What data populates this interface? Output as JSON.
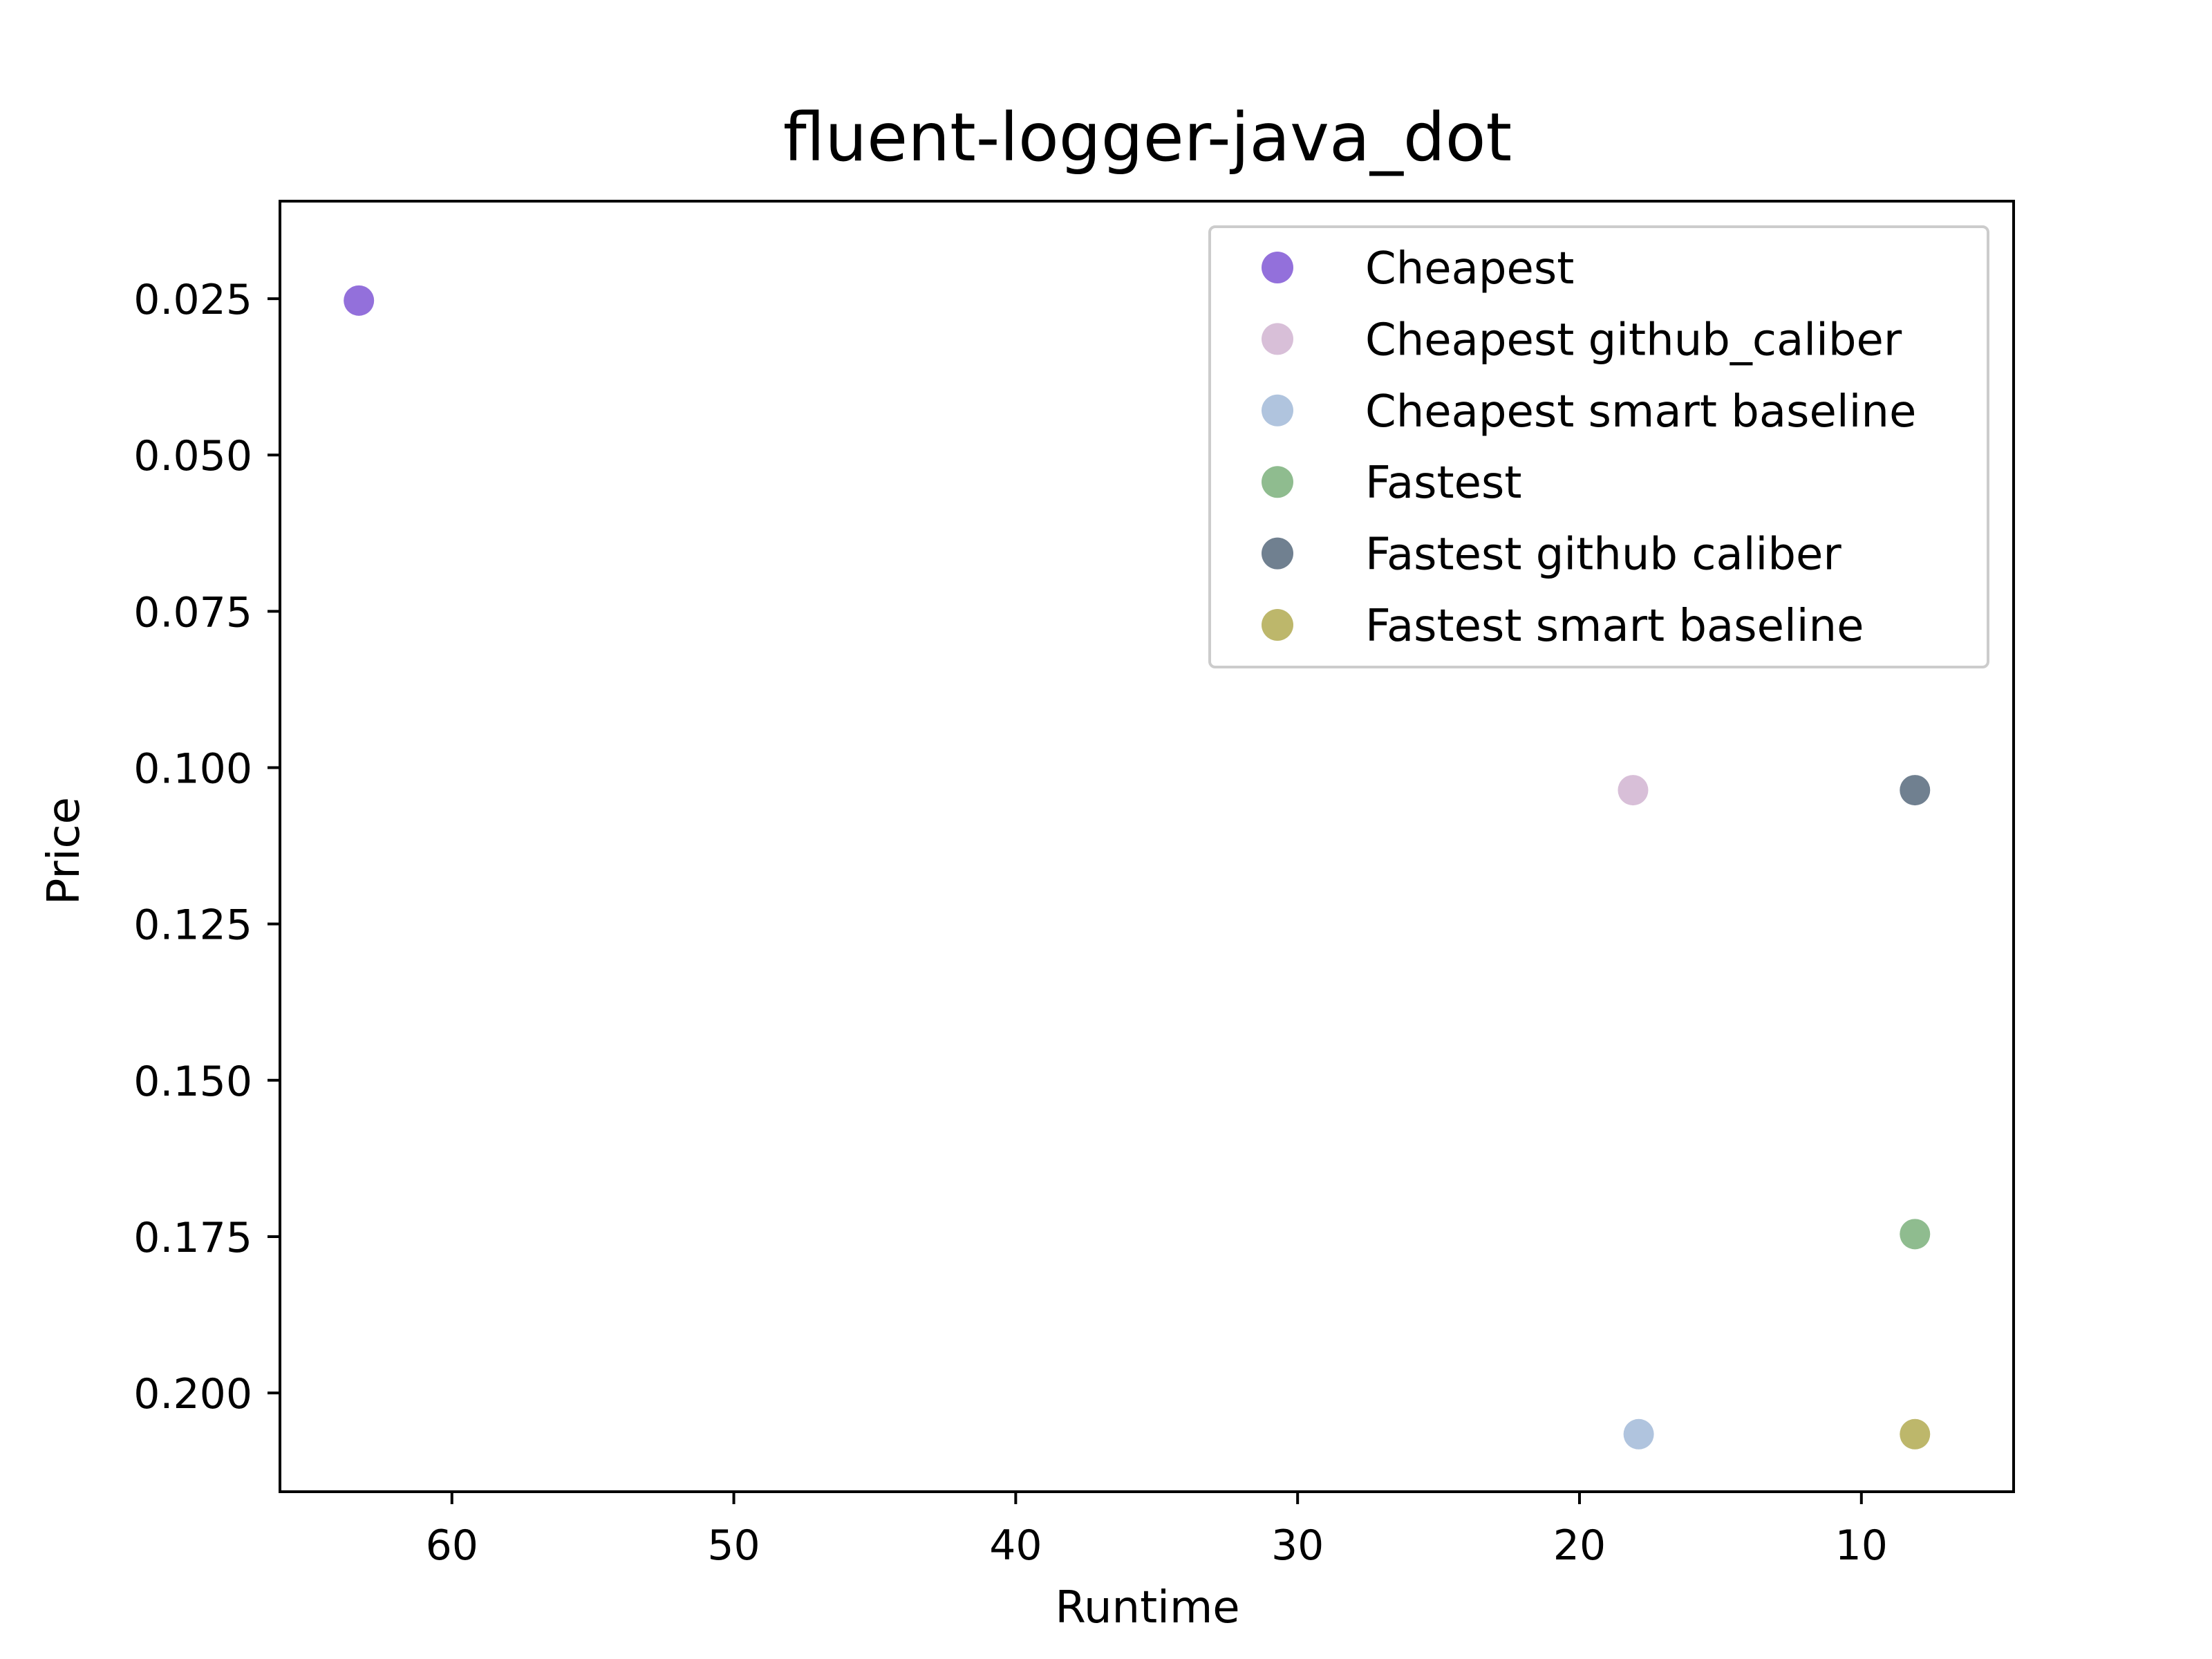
{
  "chart_data": {
    "type": "scatter",
    "title": "fluent-logger-java_dot",
    "xlabel": "Runtime",
    "ylabel": "Price",
    "x_inverted": true,
    "y_inverted": true,
    "xlim": [
      66.1,
      4.6
    ],
    "ylim": [
      0.0094,
      0.2158
    ],
    "xticks": [
      60,
      50,
      40,
      30,
      20,
      10
    ],
    "xtick_labels": [
      "60",
      "50",
      "40",
      "30",
      "20",
      "10"
    ],
    "yticks": [
      0.025,
      0.05,
      0.075,
      0.1,
      0.125,
      0.15,
      0.175,
      0.2
    ],
    "ytick_labels": [
      "0.025",
      "0.050",
      "0.075",
      "0.100",
      "0.125",
      "0.150",
      "0.175",
      "0.200"
    ],
    "grid": false,
    "legend_position": "upper right",
    "series": [
      {
        "name": "Cheapest",
        "color": "#9370db",
        "points": [
          {
            "x": 63.3,
            "y": 0.0253
          }
        ]
      },
      {
        "name": "Cheapest github_caliber",
        "color": "#d8bfd8",
        "points": [
          {
            "x": 18.1,
            "y": 0.1036
          }
        ]
      },
      {
        "name": "Cheapest smart baseline",
        "color": "#b0c4de",
        "points": [
          {
            "x": 17.9,
            "y": 0.2066
          }
        ]
      },
      {
        "name": "Fastest",
        "color": "#8fbc8f",
        "points": [
          {
            "x": 8.1,
            "y": 0.1746
          }
        ]
      },
      {
        "name": "Fastest github caliber",
        "color": "#708090",
        "points": [
          {
            "x": 8.1,
            "y": 0.1036
          }
        ]
      },
      {
        "name": "Fastest smart baseline",
        "color": "#bdb76b",
        "points": [
          {
            "x": 8.1,
            "y": 0.2066
          }
        ]
      }
    ]
  }
}
